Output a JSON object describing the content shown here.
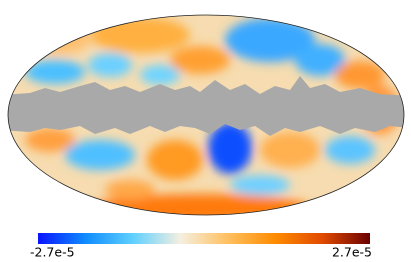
{
  "chart_data": {
    "type": "colorbar",
    "clim": [
      -2.7e-05,
      2.7e-05
    ],
    "ticks": [
      {
        "value": -2.7e-05,
        "label": "-2.7e-5"
      },
      {
        "value": 2.7e-05,
        "label": "2.7e-5"
      }
    ],
    "colormap": [
      "#0a14ff",
      "#0f8cff",
      "#5fd0ff",
      "#f4efe0",
      "#ffc060",
      "#ff8c00",
      "#e04a00",
      "#6a0000"
    ],
    "mask_color": "#a9a9a9"
  }
}
